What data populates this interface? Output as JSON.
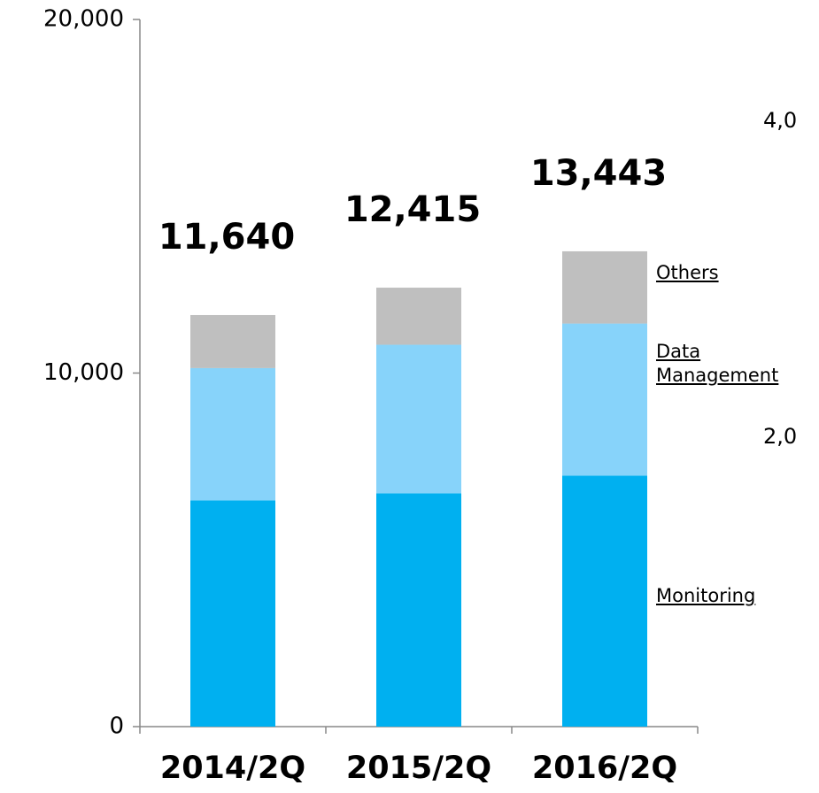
{
  "chart_data": {
    "type": "stacked_bar",
    "categories": [
      "2014/2Q",
      "2015/2Q",
      "2016/2Q"
    ],
    "series": [
      {
        "name": "Monitoring",
        "color": "#00b0f0",
        "values": [
          6400,
          6600,
          7100
        ]
      },
      {
        "name": "Data Management",
        "color": "#87d3fa",
        "values": [
          3740,
          4200,
          4300
        ]
      },
      {
        "name": "Others",
        "color": "#bfbfbf",
        "values": [
          1500,
          1615,
          2043
        ]
      }
    ],
    "totals": [
      11640,
      12415,
      13443
    ],
    "total_labels": [
      "11,640",
      "12,415",
      "13,443"
    ],
    "ylim": [
      0,
      20000
    ],
    "yticks": [
      0,
      {
        "value": 10000,
        "label": "10,000"
      },
      {
        "value": 20000,
        "label": "20,000"
      }
    ],
    "annotations": [
      "4,0",
      "2,0"
    ]
  }
}
